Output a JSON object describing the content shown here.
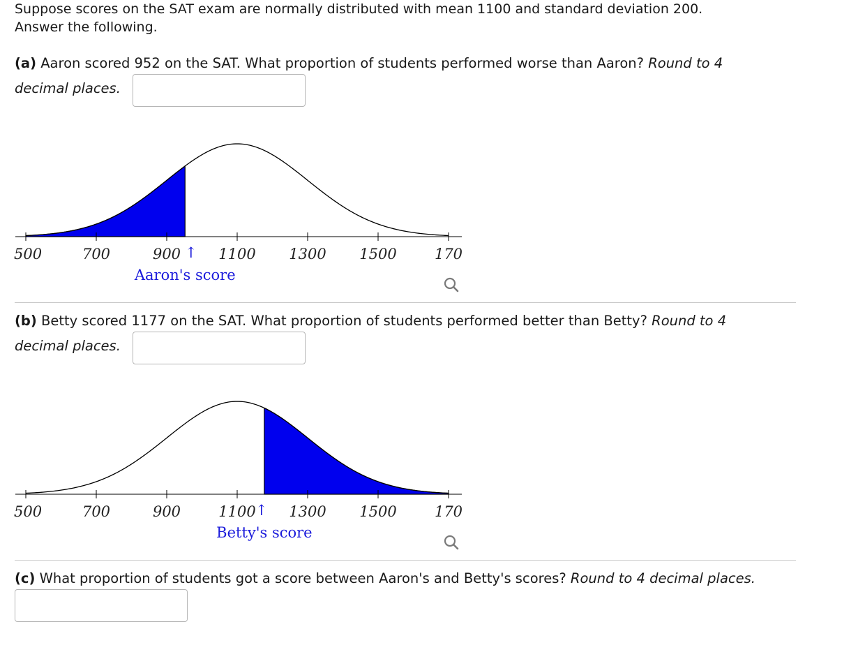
{
  "intro": {
    "line1": "Suppose scores on the SAT exam are normally distributed with mean 1100 and standard deviation 200.",
    "line2": "Answer the following."
  },
  "part_a": {
    "tag": "(a)",
    "text": "Aaron scored 952 on the SAT. What proportion of students performed worse than Aaron?",
    "hint_line1": "Round to 4",
    "hint_line2": "decimal places.",
    "answer_value": "",
    "graph": {
      "mean": 1100,
      "sd": 200,
      "shade": "left",
      "cutoff": 952,
      "ticks": [
        "500",
        "700",
        "900",
        "1100",
        "1300",
        "1500",
        "170"
      ],
      "score_label": "Aaron's score",
      "arrow": "↑",
      "fill_color": "#0000ee"
    }
  },
  "part_b": {
    "tag": "(b)",
    "text": "Betty scored 1177 on the SAT. What proportion of students performed better than Betty?",
    "hint_line1": "Round to 4",
    "hint_line2": "decimal places.",
    "answer_value": "",
    "graph": {
      "mean": 1100,
      "sd": 200,
      "shade": "right",
      "cutoff": 1177,
      "ticks": [
        "500",
        "700",
        "900",
        "1100",
        "1300",
        "1500",
        "170"
      ],
      "score_label": "Betty's score",
      "arrow": "↑",
      "fill_color": "#0000ee"
    }
  },
  "part_c": {
    "tag": "(c)",
    "text": "What proportion of students got a score between Aaron's and Betty's scores?",
    "hint": "Round to 4 decimal places.",
    "answer_value": ""
  },
  "icons": {
    "zoom": "magnifier-icon"
  }
}
